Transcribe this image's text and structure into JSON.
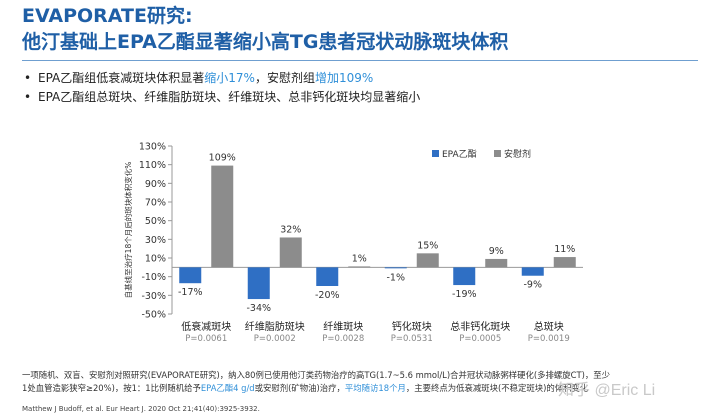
{
  "title_line1": "EVAPORATE研究:",
  "title_line2": "他汀基础上EPA乙酯显著缩小高TG患者冠状动脉斑块体积",
  "bullets": [
    {
      "pre": "EPA乙酯组低衰减斑块体积显著",
      "hl1": "缩小17%",
      "mid": "，安慰剂组",
      "hl2": "增加109%"
    },
    {
      "text": "EPA乙酯组总斑块、纤维脂肪斑块、纤维斑块、总非钙化斑块均显著缩小"
    }
  ],
  "chart_data": {
    "type": "bar",
    "ylabel": "自基线至治疗18个月后的斑块体积变化%",
    "ylim": [
      -50,
      130
    ],
    "yticks": [
      -50,
      -30,
      -10,
      10,
      30,
      50,
      70,
      90,
      110,
      130
    ],
    "ytick_labels": [
      "-50%",
      "-30%",
      "-10%",
      "10%",
      "30%",
      "50%",
      "70%",
      "90%",
      "110%",
      "130%"
    ],
    "categories": [
      "低衰减斑块",
      "纤维脂肪斑块",
      "纤维斑块",
      "钙化斑块",
      "总非钙化斑块",
      "总斑块"
    ],
    "p_values": [
      "P=0.0061",
      "P=0.0002",
      "P=0.0028",
      "P=0.0531",
      "P=0.0005",
      "P=0.0019"
    ],
    "series": [
      {
        "name": "EPA乙酯",
        "color": "#2f6fc4",
        "values": [
          -17,
          -34,
          -20,
          -1,
          -19,
          -9
        ],
        "labels": [
          "-17%",
          "-34%",
          "-20%",
          "-1%",
          "-19%",
          "-9%"
        ]
      },
      {
        "name": "安慰剂",
        "color": "#8c8c8c",
        "values": [
          109,
          32,
          1,
          15,
          9,
          11
        ],
        "labels": [
          "109%",
          "32%",
          "1%",
          "15%",
          "9%",
          "11%"
        ]
      }
    ],
    "legend_position": "top-right",
    "grid": false
  },
  "footnote_line1": "一项随机、双盲、安慰剂对照研究(EVAPORATE研究)，纳入80例已使用他汀类药物治疗的高TG(1.7~5.6  mmol/L)合并冠状动脉粥样硬化(多排螺旋CT)，至少",
  "footnote_line2_a": "1处血管造影狭窄≥20%)，按1：1比例随机给予",
  "footnote_line2_hl1": "EPA乙酯4  g/d",
  "footnote_line2_b": "或安慰剂(矿物油)治疗，",
  "footnote_line2_hl2": "平均随访18个月",
  "footnote_line2_c": "，主要终点为低衰减斑块(不稳定斑块)的体积变化",
  "reference": "Matthew J Budoff, et al. Eur Heart J. 2020 Oct 21;41(40):3925-3932.",
  "watermark": "知乎 @Eric Li"
}
